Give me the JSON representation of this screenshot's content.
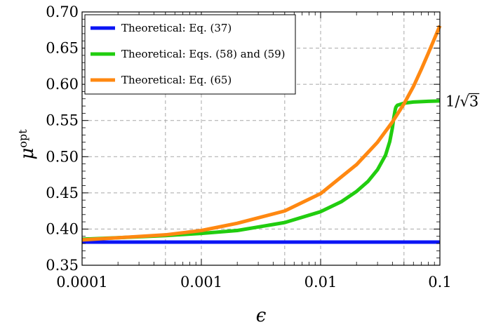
{
  "chart_data": {
    "type": "line",
    "xlabel": "ϵ",
    "ylabel_base": "μ",
    "ylabel_sup": "opt",
    "x_scale": "log",
    "xlim": [
      0.0001,
      0.1
    ],
    "ylim": [
      0.35,
      0.7
    ],
    "grid": true,
    "grid_style": "dashed",
    "legend_position": "top-left",
    "x_ticks": [
      0.0001,
      0.001,
      0.01,
      0.1
    ],
    "x_tick_labels": [
      "0.0001",
      "0.001",
      "0.01",
      "0.1"
    ],
    "x_grid": [
      0.0005,
      0.001,
      0.005,
      0.01,
      0.05
    ],
    "y_ticks": [
      0.35,
      0.4,
      0.45,
      0.5,
      0.55,
      0.6,
      0.65,
      0.7
    ],
    "y_tick_labels": [
      "0.35",
      "0.40",
      "0.45",
      "0.50",
      "0.55",
      "0.60",
      "0.65",
      "0.70"
    ],
    "annotation": {
      "text_prefix": "1/",
      "text_radicand": "3",
      "y": 0.5774
    },
    "series": [
      {
        "name": "Theoretical: Eq. (37)",
        "color": "#0a14f5",
        "x": [
          0.0001,
          0.1
        ],
        "y": [
          0.382,
          0.382
        ]
      },
      {
        "name": "Theoretical: Eqs. (58) and (59)",
        "color": "#21cd0f",
        "x": [
          0.0001,
          0.0002,
          0.0005,
          0.001,
          0.002,
          0.005,
          0.01,
          0.015,
          0.02,
          0.025,
          0.03,
          0.035,
          0.038,
          0.04,
          0.041,
          0.042,
          0.0425,
          0.043,
          0.044,
          0.046,
          0.05,
          0.06,
          0.08,
          0.1
        ],
        "y": [
          0.386,
          0.388,
          0.391,
          0.394,
          0.398,
          0.409,
          0.424,
          0.438,
          0.452,
          0.466,
          0.482,
          0.502,
          0.521,
          0.54,
          0.553,
          0.563,
          0.567,
          0.569,
          0.571,
          0.572,
          0.574,
          0.5755,
          0.5765,
          0.577
        ]
      },
      {
        "name": "Theoretical: Eq. (65)",
        "color": "#ff8811",
        "x": [
          0.0001,
          0.0002,
          0.0005,
          0.001,
          0.002,
          0.005,
          0.01,
          0.02,
          0.03,
          0.04,
          0.05,
          0.06,
          0.07,
          0.08,
          0.09,
          0.1
        ],
        "y": [
          0.385,
          0.388,
          0.392,
          0.398,
          0.408,
          0.425,
          0.449,
          0.489,
          0.52,
          0.548,
          0.573,
          0.597,
          0.621,
          0.643,
          0.663,
          0.681
        ]
      }
    ]
  }
}
